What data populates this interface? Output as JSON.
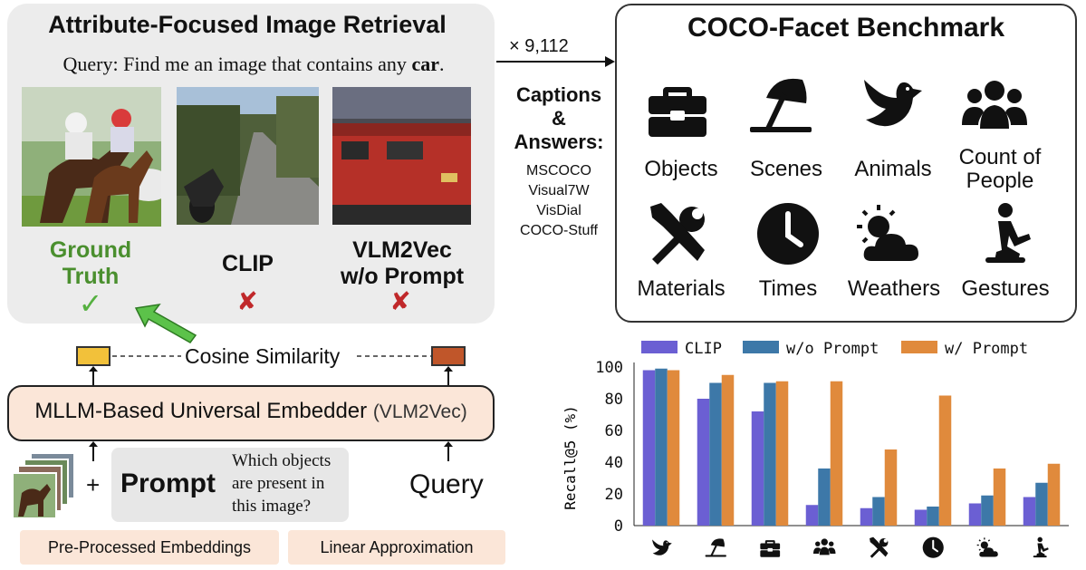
{
  "retrieval": {
    "title": "Attribute-Focused Image Retrieval",
    "query_prefix": "Query: Find me an image that contains any ",
    "query_target": "car",
    "query_suffix": ".",
    "results": [
      {
        "label_line1": "Ground",
        "label_line2": "Truth",
        "mark": "✓",
        "correct": true
      },
      {
        "label_line1": "CLIP",
        "label_line2": "",
        "mark": "✘",
        "correct": false
      },
      {
        "label_line1": "VLM2Vec",
        "label_line2": "w/o Prompt",
        "mark": "✘",
        "correct": false
      }
    ]
  },
  "bridge": {
    "count": "× 9,112",
    "captions_title_1": "Captions",
    "captions_title_2": "&",
    "captions_title_3": "Answers:",
    "sources": [
      "MSCOCO",
      "Visual7W",
      "VisDial",
      "COCO-Stuff"
    ]
  },
  "benchmark": {
    "title": "COCO-Facet Benchmark",
    "categories": [
      {
        "label1": "Objects",
        "label2": "",
        "icon": "toolbox-icon"
      },
      {
        "label1": "Scenes",
        "label2": "",
        "icon": "beach-umbrella-icon"
      },
      {
        "label1": "Animals",
        "label2": "",
        "icon": "dove-icon"
      },
      {
        "label1": "Count of",
        "label2": "People",
        "icon": "people-group-icon"
      },
      {
        "label1": "Materials",
        "label2": "",
        "icon": "tools-icon"
      },
      {
        "label1": "Times",
        "label2": "",
        "icon": "clock-icon"
      },
      {
        "label1": "Weathers",
        "label2": "",
        "icon": "sun-cloud-icon"
      },
      {
        "label1": "Gestures",
        "label2": "",
        "icon": "kneeling-person-icon"
      }
    ]
  },
  "pipeline": {
    "similarity_label": "Cosine Similarity",
    "embedder_main": "MLLM-Based Universal Embedder ",
    "embedder_sub": "(VLM2Vec)",
    "plus": "+",
    "prompt_word": "Prompt",
    "prompt_question": "Which objects are present in this image?",
    "query_word": "Query",
    "footer_left": "Pre-Processed Embeddings",
    "footer_right": "Linear Approximation",
    "colors": {
      "image_emb": "#f2c13a",
      "query_emb": "#c0562a",
      "embedder_fill": "#fbe6d8",
      "arrow": "#5cc24a"
    }
  },
  "chart_data": {
    "type": "bar",
    "ylabel": "Recall@5 (%)",
    "ylim": [
      0,
      100
    ],
    "yticks": [
      0,
      20,
      40,
      60,
      80,
      100
    ],
    "categories": [
      "dove-icon",
      "beach-umbrella-icon",
      "toolbox-icon",
      "people-group-icon",
      "tools-icon",
      "clock-icon",
      "sun-cloud-icon",
      "kneeling-person-icon"
    ],
    "legend_position": "top",
    "series": [
      {
        "name": "CLIP",
        "color": "#6b5fd3",
        "values": [
          98,
          80,
          72,
          13,
          11,
          10,
          14,
          18
        ]
      },
      {
        "name": "w/o Prompt",
        "color": "#3d78a8",
        "values": [
          99,
          90,
          90,
          36,
          18,
          12,
          19,
          27
        ]
      },
      {
        "name": "w/ Prompt",
        "color": "#e08a3c",
        "values": [
          98,
          95,
          91,
          91,
          48,
          82,
          36,
          39
        ]
      }
    ]
  }
}
